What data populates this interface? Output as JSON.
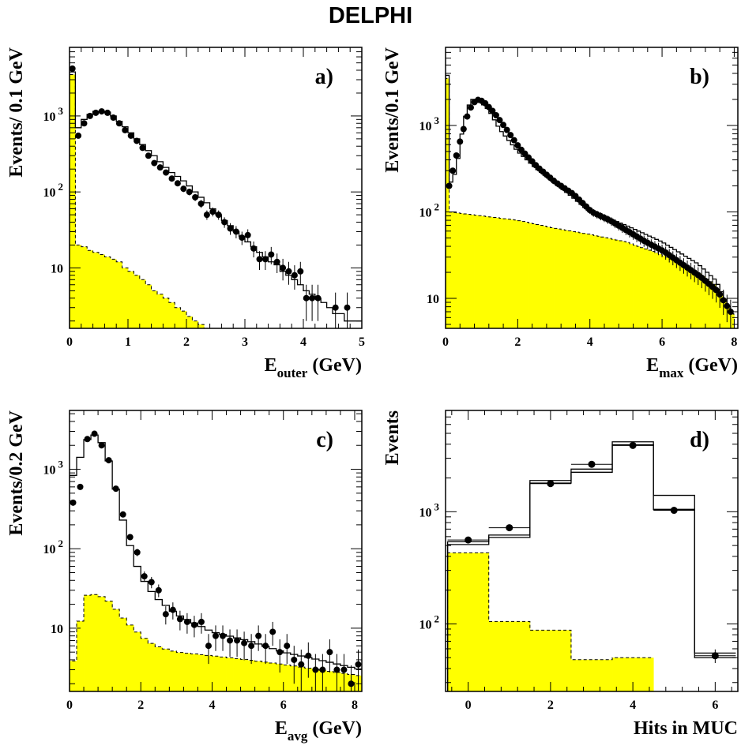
{
  "title": "DELPHI",
  "colors": {
    "background_fill": "#ffff00",
    "line": "#000000"
  },
  "chart_data": [
    {
      "type": "bar",
      "panel": "a)",
      "xlabel": "E",
      "xlabel_sub": "outer",
      "xlabel_unit": " (GeV)",
      "ylabel": "Events/ 0.1 GeV",
      "yscale": "log",
      "xlim": [
        0,
        5
      ],
      "ylim": [
        1.6,
        8000
      ],
      "x_ticks": [
        0,
        1,
        2,
        3,
        4,
        5
      ],
      "y_ticks": [
        {
          "value": 10,
          "label": "10"
        },
        {
          "value": 100,
          "label": "10 2"
        },
        {
          "value": 1000,
          "label": "10 3"
        }
      ],
      "bin_width": 0.1,
      "series": [
        {
          "role": "background",
          "style": "yellow-fill-dashed",
          "x": [
            0,
            0.1,
            0.2,
            0.3,
            0.4,
            0.5,
            0.6,
            0.7,
            0.8,
            0.9,
            1.0,
            1.1,
            1.2,
            1.3,
            1.4,
            1.5,
            1.6,
            1.7,
            1.8,
            1.9,
            2.0,
            2.1,
            2.2,
            2.3,
            2.4,
            2.5
          ],
          "values": [
            3500,
            20,
            19,
            17,
            16,
            15,
            14,
            13,
            12,
            10,
            9,
            8,
            7,
            6,
            5,
            4.5,
            4,
            3.5,
            3,
            2.7,
            2.3,
            2,
            1.8,
            1.6,
            0,
            0
          ]
        },
        {
          "role": "mc",
          "style": "solid-step",
          "x": [
            0,
            0.1,
            0.2,
            0.3,
            0.4,
            0.5,
            0.6,
            0.7,
            0.8,
            0.9,
            1.0,
            1.1,
            1.2,
            1.3,
            1.4,
            1.5,
            1.6,
            1.7,
            1.8,
            1.9,
            2.0,
            2.1,
            2.2,
            2.3,
            2.4,
            2.5,
            2.6,
            2.7,
            2.8,
            2.9,
            3.0,
            3.1,
            3.2,
            3.3,
            3.4,
            3.5,
            3.6,
            3.7,
            3.8,
            3.9,
            4.0,
            4.1,
            4.2,
            4.3,
            4.4,
            4.5,
            4.6,
            4.7,
            4.8,
            4.9
          ],
          "values": [
            3800,
            700,
            900,
            1050,
            1150,
            1150,
            1120,
            1000,
            850,
            720,
            600,
            500,
            420,
            350,
            300,
            250,
            210,
            180,
            160,
            140,
            120,
            100,
            85,
            72,
            60,
            50,
            42,
            36,
            30,
            26,
            22,
            19,
            16,
            14,
            12,
            11,
            9,
            8,
            7,
            6,
            5,
            4.5,
            4,
            3.5,
            3,
            2.5,
            2.5,
            2,
            2,
            2
          ]
        },
        {
          "role": "data",
          "style": "points",
          "x": [
            0.05,
            0.15,
            0.25,
            0.35,
            0.45,
            0.55,
            0.65,
            0.75,
            0.85,
            0.95,
            1.05,
            1.15,
            1.25,
            1.35,
            1.45,
            1.55,
            1.65,
            1.75,
            1.85,
            1.95,
            2.05,
            2.15,
            2.25,
            2.35,
            2.45,
            2.55,
            2.65,
            2.75,
            2.85,
            2.95,
            3.05,
            3.15,
            3.25,
            3.35,
            3.45,
            3.55,
            3.65,
            3.75,
            3.85,
            3.95,
            4.05,
            4.15,
            4.25,
            4.55,
            4.75
          ],
          "values": [
            4200,
            550,
            800,
            1000,
            1100,
            1150,
            1100,
            950,
            800,
            650,
            550,
            470,
            380,
            300,
            240,
            210,
            180,
            150,
            130,
            110,
            100,
            85,
            70,
            50,
            55,
            50,
            40,
            33,
            30,
            25,
            27,
            18,
            13,
            13,
            15,
            12,
            10,
            9,
            8,
            9,
            4,
            4,
            4,
            3,
            3
          ]
        }
      ]
    },
    {
      "type": "bar",
      "panel": "b)",
      "xlabel": "E",
      "xlabel_sub": "max",
      "xlabel_unit": " (GeV)",
      "ylabel": "Events/0.1 GeV",
      "yscale": "log",
      "xlim": [
        0,
        8.1
      ],
      "ylim": [
        4.5,
        8000
      ],
      "x_ticks": [
        0,
        2,
        4,
        6,
        8
      ],
      "y_ticks": [
        {
          "value": 10,
          "label": "10"
        },
        {
          "value": 100,
          "label": "10 2"
        },
        {
          "value": 1000,
          "label": "10 3"
        }
      ],
      "bin_width": 0.1,
      "series": [
        {
          "role": "background",
          "style": "yellow-fill-dashed",
          "x_range": [
            0,
            8.0
          ],
          "first_bin": 3500,
          "profile": [
            [
              0.1,
              100
            ],
            [
              1,
              90
            ],
            [
              2,
              80
            ],
            [
              3,
              65
            ],
            [
              4,
              55
            ],
            [
              5,
              45
            ],
            [
              6,
              32
            ],
            [
              7,
              20
            ],
            [
              7.5,
              14
            ],
            [
              8.0,
              6
            ]
          ]
        },
        {
          "role": "mc",
          "style": "solid-step",
          "x_range": [
            0,
            8.0
          ],
          "first_bin": 3800,
          "profile": [
            [
              0.1,
              200
            ],
            [
              0.3,
              300
            ],
            [
              0.5,
              1100
            ],
            [
              0.7,
              2000
            ],
            [
              0.9,
              2000
            ],
            [
              1.2,
              1500
            ],
            [
              1.5,
              900
            ],
            [
              2,
              500
            ],
            [
              2.5,
              320
            ],
            [
              3,
              220
            ],
            [
              3.5,
              150
            ],
            [
              4,
              100
            ],
            [
              4.5,
              85
            ],
            [
              5,
              70
            ],
            [
              6,
              45
            ],
            [
              7,
              25
            ],
            [
              7.5,
              16
            ],
            [
              8.0,
              6
            ]
          ]
        },
        {
          "role": "data",
          "style": "points",
          "x_range": [
            0.05,
            7.95
          ],
          "profile": [
            [
              0.05,
              200
            ],
            [
              0.3,
              550
            ],
            [
              0.6,
              1500
            ],
            [
              0.8,
              2000
            ],
            [
              1.0,
              1900
            ],
            [
              1.3,
              1400
            ],
            [
              1.6,
              950
            ],
            [
              2,
              550
            ],
            [
              2.5,
              330
            ],
            [
              3,
              220
            ],
            [
              3.5,
              160
            ],
            [
              4,
              100
            ],
            [
              4.5,
              80
            ],
            [
              5,
              60
            ],
            [
              5.5,
              45
            ],
            [
              6,
              35
            ],
            [
              6.5,
              25
            ],
            [
              7,
              18
            ],
            [
              7.5,
              12
            ],
            [
              7.95,
              6
            ]
          ]
        }
      ]
    },
    {
      "type": "bar",
      "panel": "c)",
      "xlabel": "E",
      "xlabel_sub": "avg",
      "xlabel_unit": " (GeV)",
      "ylabel": "Events/0.2 GeV",
      "yscale": "log",
      "xlim": [
        0,
        8.2
      ],
      "ylim": [
        1.6,
        5500
      ],
      "x_ticks": [
        0,
        2,
        4,
        6,
        8
      ],
      "y_ticks": [
        {
          "value": 10,
          "label": "10"
        },
        {
          "value": 100,
          "label": "10 2"
        },
        {
          "value": 1000,
          "label": "10 3"
        }
      ],
      "bin_width": 0.2,
      "series": [
        {
          "role": "background",
          "style": "yellow-fill-dashed",
          "x_range": [
            0,
            8.2
          ],
          "profile": [
            [
              0.0,
              2.5
            ],
            [
              0.2,
              6
            ],
            [
              0.4,
              25
            ],
            [
              0.6,
              27
            ],
            [
              0.8,
              26
            ],
            [
              1.0,
              24
            ],
            [
              1.2,
              20
            ],
            [
              1.4,
              15
            ],
            [
              1.6,
              12
            ],
            [
              1.8,
              10
            ],
            [
              2.0,
              8
            ],
            [
              2.4,
              6
            ],
            [
              3,
              5
            ],
            [
              4,
              4.5
            ],
            [
              5,
              4
            ],
            [
              6,
              3.5
            ],
            [
              7,
              3
            ],
            [
              8.2,
              2.5
            ]
          ]
        },
        {
          "role": "mc",
          "style": "solid-step",
          "x_range": [
            0,
            8.2
          ],
          "profile": [
            [
              0.0,
              700
            ],
            [
              0.2,
              1000
            ],
            [
              0.4,
              2000
            ],
            [
              0.6,
              2800
            ],
            [
              0.8,
              2600
            ],
            [
              1.0,
              1800
            ],
            [
              1.2,
              900
            ],
            [
              1.4,
              350
            ],
            [
              1.6,
              150
            ],
            [
              1.8,
              80
            ],
            [
              2.0,
              45
            ],
            [
              2.4,
              25
            ],
            [
              3,
              15
            ],
            [
              4,
              9
            ],
            [
              5,
              7
            ],
            [
              6,
              5
            ],
            [
              7,
              4
            ],
            [
              8.2,
              3
            ]
          ]
        },
        {
          "role": "data",
          "style": "points",
          "x": [
            0.1,
            0.3,
            0.5,
            0.7,
            0.9,
            1.1,
            1.3,
            1.5,
            1.7,
            1.9,
            2.1,
            2.3,
            2.5,
            2.7,
            2.9,
            3.1,
            3.3,
            3.5,
            3.7,
            3.9,
            4.1,
            4.3,
            4.5,
            4.7,
            4.9,
            5.1,
            5.3,
            5.5,
            5.7,
            5.9,
            6.1,
            6.3,
            6.5,
            6.7,
            6.9,
            7.1,
            7.3,
            7.5,
            7.7,
            7.9,
            8.1
          ],
          "values": [
            380,
            600,
            2400,
            2800,
            2000,
            1300,
            570,
            270,
            140,
            90,
            45,
            38,
            30,
            15,
            17,
            13,
            12,
            11,
            12,
            6,
            8,
            8,
            7,
            7,
            6.5,
            6,
            8,
            6,
            9,
            5,
            6,
            4,
            3.5,
            4.5,
            3,
            3,
            5,
            3,
            3,
            2,
            3.5
          ]
        }
      ]
    },
    {
      "type": "bar",
      "panel": "d)",
      "xlabel": "Hits in MUC",
      "xlabel_sub": "",
      "xlabel_unit": "",
      "ylabel": "Events",
      "yscale": "log",
      "xlim": [
        -0.55,
        6.55
      ],
      "ylim": [
        25,
        8000
      ],
      "x_ticks": [
        0,
        2,
        4,
        6
      ],
      "y_ticks": [
        {
          "value": 100,
          "label": "10 2"
        },
        {
          "value": 1000,
          "label": "10 3"
        }
      ],
      "bin_width": 1,
      "series": [
        {
          "role": "background",
          "style": "yellow-fill-dashed",
          "x": [
            0,
            1,
            2,
            3,
            4
          ],
          "values": [
            430,
            105,
            88,
            48,
            50
          ]
        },
        {
          "role": "mc",
          "style": "solid-step",
          "name_hint": "upper",
          "x": [
            0,
            1,
            2,
            3,
            4,
            5,
            6
          ],
          "values": [
            540,
            620,
            1900,
            2400,
            4200,
            1400,
            55
          ]
        },
        {
          "role": "mc2",
          "style": "solid-step",
          "name_hint": "lower",
          "x": [
            0,
            1,
            2,
            3,
            4,
            5,
            6
          ],
          "values": [
            510,
            590,
            1800,
            2250,
            3950,
            1050,
            50
          ]
        },
        {
          "role": "data",
          "style": "points",
          "x": [
            0,
            1,
            2,
            3,
            4,
            5,
            6
          ],
          "values": [
            560,
            720,
            1780,
            2650,
            3900,
            1030,
            52
          ]
        }
      ]
    }
  ]
}
